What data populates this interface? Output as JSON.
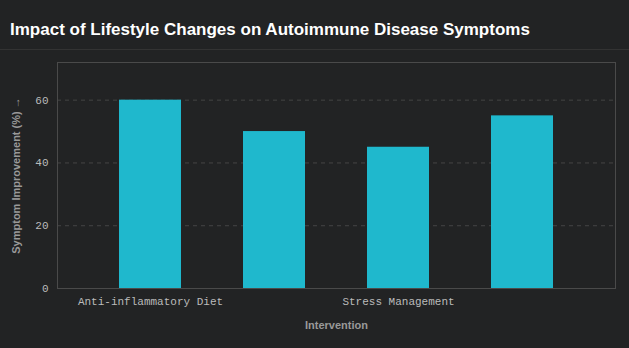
{
  "chart_data": {
    "type": "bar",
    "title": "Impact of Lifestyle Changes on Autoimmune Disease Symptoms",
    "x_label": "Intervention",
    "y_label": "Symptom Improvement (%)",
    "categories": [
      "Anti-inflammatory Diet",
      null,
      "Stress Management",
      null
    ],
    "values": [
      60,
      50,
      45,
      55
    ],
    "color": "#1fb8cd",
    "ylim": [
      0,
      72
    ],
    "yticks": [
      0,
      20,
      40,
      60
    ],
    "grid": true
  }
}
